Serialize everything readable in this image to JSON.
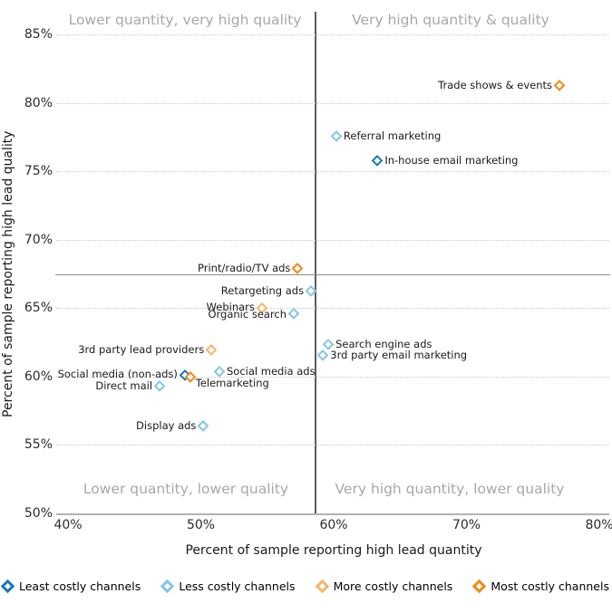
{
  "chart_data": {
    "type": "scatter",
    "xlabel": "Percent of sample reporting high lead quantity",
    "ylabel": "Percent of sample reporting high lead quality",
    "xlim": [
      40,
      80
    ],
    "ylim": [
      50,
      85
    ],
    "x_tick_values": [
      40,
      50,
      60,
      70,
      80
    ],
    "x_ticks": [
      "40%",
      "50%",
      "60%",
      "70%",
      "80%"
    ],
    "y_tick_values": [
      85,
      80,
      75,
      70,
      65,
      60,
      55,
      50
    ],
    "y_ticks": [
      "85%",
      "80%",
      "75%",
      "70%",
      "65%",
      "60%",
      "55%",
      "50%"
    ],
    "grid": "horizontal-dotted",
    "divider_x": 58.6,
    "divider_y": 67.5,
    "quadrant_labels": {
      "top_left": "Lower quantity, very high quality",
      "top_right": "Very high quantity & quality",
      "bottom_left": "Lower quantity, lower quality",
      "bottom_right": "Very high quantity, lower quality"
    },
    "series_colors": {
      "least": "#1879bd",
      "less": "#86c5e6",
      "more": "#f9b269",
      "most": "#f08912"
    },
    "legend": [
      {
        "label": "Least costly channels",
        "tier": "least"
      },
      {
        "label": "Less costly channels",
        "tier": "less"
      },
      {
        "label": "More costly channels",
        "tier": "more"
      },
      {
        "label": "Most costly channels",
        "tier": "most"
      }
    ],
    "points": [
      {
        "label": "Trade shows & events",
        "x": 77.0,
        "y": 81.3,
        "tier": "most",
        "side": "left"
      },
      {
        "label": "Referral marketing",
        "x": 60.2,
        "y": 77.6,
        "tier": "less",
        "side": "right"
      },
      {
        "label": "In-house email marketing",
        "x": 63.3,
        "y": 75.8,
        "tier": "least",
        "side": "right"
      },
      {
        "label": "Print/radio/TV ads",
        "x": 57.3,
        "y": 67.9,
        "tier": "most",
        "side": "left"
      },
      {
        "label": "Retargeting ads",
        "x": 58.3,
        "y": 66.3,
        "tier": "less",
        "side": "left"
      },
      {
        "label": "Webinars",
        "x": 54.6,
        "y": 65.0,
        "tier": "more",
        "side": "left",
        "dy": -1
      },
      {
        "label": "Organic search",
        "x": 57.0,
        "y": 64.6,
        "tier": "less",
        "side": "left",
        "dy": 1
      },
      {
        "label": "Search engine ads",
        "x": 59.6,
        "y": 62.4,
        "tier": "less",
        "side": "right"
      },
      {
        "label": "3rd party email marketing",
        "x": 59.2,
        "y": 61.6,
        "tier": "less",
        "side": "right"
      },
      {
        "label": "3rd party lead providers",
        "x": 50.8,
        "y": 62.0,
        "tier": "more",
        "side": "left"
      },
      {
        "label": "Social media ads",
        "x": 51.4,
        "y": 60.4,
        "tier": "less",
        "side": "right"
      },
      {
        "label": "Social media (non-ads)",
        "x": 48.8,
        "y": 60.1,
        "tier": "least",
        "side": "left",
        "dy": -1
      },
      {
        "label": "Telemarketing",
        "x": 49.2,
        "y": 60.0,
        "tier": "most",
        "side": "right",
        "dx": -2,
        "dy": 7
      },
      {
        "label": "Direct mail",
        "x": 46.9,
        "y": 59.3,
        "tier": "less",
        "side": "left"
      },
      {
        "label": "Display ads",
        "x": 50.2,
        "y": 56.4,
        "tier": "less",
        "side": "left"
      }
    ]
  }
}
